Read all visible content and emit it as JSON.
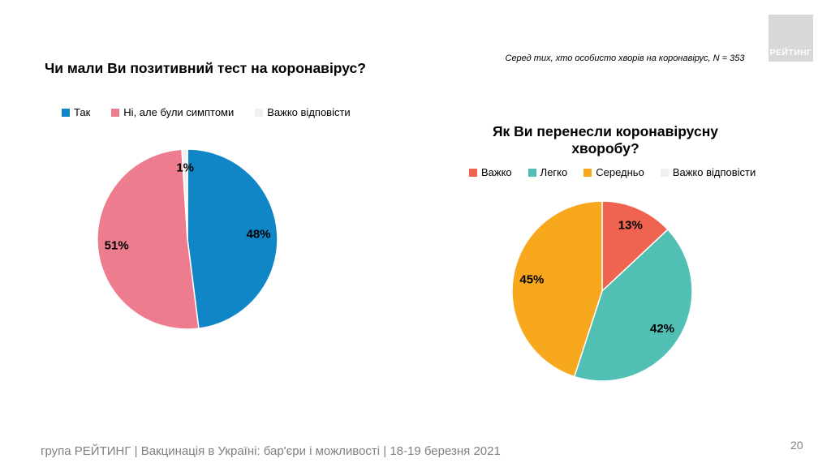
{
  "slide": {
    "logo_text": "РЕЙТИНГ",
    "page_number": "20",
    "footer": "група РЕЙТИНГ | Вакцинація в Україні: бар'єри і можливості | 18-19 березня 2021",
    "note": "Серед тих, хто особисто хворів на коронавірус, N = 353"
  },
  "chart_data": [
    {
      "type": "pie",
      "title": "Чи мали Ви позитивний тест на коронавірус?",
      "categories": [
        "Так",
        "Ні, але були симптоми",
        "Важко відповісти"
      ],
      "values": [
        48,
        51,
        1
      ],
      "labels": [
        "48%",
        "51%",
        "1%"
      ],
      "colors": [
        "#1086C7",
        "#EC7C8E",
        "#F0F0F0"
      ],
      "legend_position": "top",
      "start_angle_deg": 0,
      "direction": "clockwise"
    },
    {
      "type": "pie",
      "title": "Як Ви перенесли коронавірусну хворобу?",
      "categories": [
        "Важко",
        "Легко",
        "Середньо",
        "Важко відповісти"
      ],
      "values": [
        13,
        42,
        45,
        0
      ],
      "labels": [
        "13%",
        "42%",
        "45%",
        ""
      ],
      "colors": [
        "#EE6450",
        "#52BFB5",
        "#F7A81C",
        "#F0F0F0"
      ],
      "legend_position": "top",
      "start_angle_deg": 0,
      "direction": "clockwise"
    }
  ]
}
